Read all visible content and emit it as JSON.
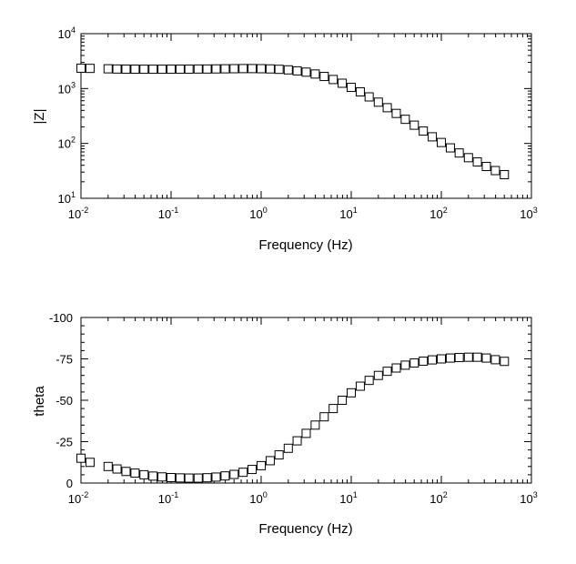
{
  "chart_data": [
    {
      "type": "scatter",
      "xlabel": "Frequency (Hz)",
      "ylabel": "|Z|",
      "xscale": "log",
      "yscale": "log",
      "xlim": [
        0.01,
        1000
      ],
      "ylim": [
        10,
        10000
      ],
      "xticks": [
        {
          "base": "10",
          "exp": "-2"
        },
        {
          "base": "10",
          "exp": "-1"
        },
        {
          "base": "10",
          "exp": "0"
        },
        {
          "base": "10",
          "exp": "1"
        },
        {
          "base": "10",
          "exp": "2"
        },
        {
          "base": "10",
          "exp": "3"
        }
      ],
      "yticks": [
        {
          "base": "10",
          "exp": "1"
        },
        {
          "base": "10",
          "exp": "2"
        },
        {
          "base": "10",
          "exp": "3"
        },
        {
          "base": "10",
          "exp": "4"
        }
      ],
      "grid": false,
      "marker": "open-square",
      "series": [
        {
          "x": [
            0.01,
            0.0126,
            0.02,
            0.0251,
            0.0316,
            0.0398,
            0.0501,
            0.0631,
            0.0794,
            0.1,
            0.126,
            0.158,
            0.2,
            0.251,
            0.316,
            0.398,
            0.501,
            0.631,
            0.794,
            1,
            1.26,
            1.58,
            2,
            2.51,
            3.16,
            3.98,
            5.01,
            6.31,
            7.94,
            10,
            12.6,
            15.8,
            20,
            25.1,
            31.6,
            39.8,
            50.1,
            63.1,
            79.4,
            100,
            126,
            158,
            200,
            251,
            316,
            398,
            501
          ],
          "y": [
            2350,
            2330,
            2290,
            2270,
            2260,
            2255,
            2250,
            2250,
            2250,
            2260,
            2260,
            2260,
            2270,
            2270,
            2280,
            2290,
            2300,
            2310,
            2310,
            2300,
            2280,
            2240,
            2190,
            2100,
            1990,
            1840,
            1660,
            1460,
            1250,
            1050,
            870,
            705,
            565,
            448,
            352,
            275,
            215,
            168,
            132,
            104,
            83,
            67,
            55,
            46,
            38,
            32,
            27
          ]
        }
      ]
    },
    {
      "type": "scatter",
      "xlabel": "Frequency (Hz)",
      "ylabel": "theta",
      "xscale": "log",
      "yscale": "linear",
      "xlim": [
        0.01,
        1000
      ],
      "ylim": [
        0,
        -100
      ],
      "xticks": [
        {
          "base": "10",
          "exp": "-2"
        },
        {
          "base": "10",
          "exp": "-1"
        },
        {
          "base": "10",
          "exp": "0"
        },
        {
          "base": "10",
          "exp": "1"
        },
        {
          "base": "10",
          "exp": "2"
        },
        {
          "base": "10",
          "exp": "3"
        }
      ],
      "yticks": [
        "0",
        "-25",
        "-50",
        "-75",
        "-100"
      ],
      "grid": false,
      "marker": "open-square",
      "series": [
        {
          "x": [
            0.01,
            0.0126,
            0.02,
            0.0251,
            0.0316,
            0.0398,
            0.0501,
            0.0631,
            0.0794,
            0.1,
            0.126,
            0.158,
            0.2,
            0.251,
            0.316,
            0.398,
            0.501,
            0.631,
            0.794,
            1,
            1.26,
            1.58,
            2,
            2.51,
            3.16,
            3.98,
            5.01,
            6.31,
            7.94,
            10,
            12.6,
            15.8,
            20,
            25.1,
            31.6,
            39.8,
            50.1,
            63.1,
            79.4,
            100,
            126,
            158,
            200,
            251,
            316,
            398,
            501
          ],
          "y": [
            -15,
            -12.5,
            -10,
            -8.5,
            -7,
            -6,
            -5,
            -4.2,
            -3.7,
            -3.3,
            -3.1,
            -3,
            -3,
            -3.2,
            -3.6,
            -4.3,
            -5.2,
            -6.5,
            -8.2,
            -10.5,
            -13.5,
            -17,
            -21,
            -25.5,
            -30,
            -35,
            -40,
            -45,
            -50,
            -54.5,
            -58.5,
            -62,
            -65,
            -67.5,
            -69.5,
            -71.2,
            -72.5,
            -73.6,
            -74.4,
            -75,
            -75.5,
            -75.8,
            -76,
            -76,
            -75.5,
            -74.5,
            -73.5
          ]
        }
      ]
    }
  ]
}
